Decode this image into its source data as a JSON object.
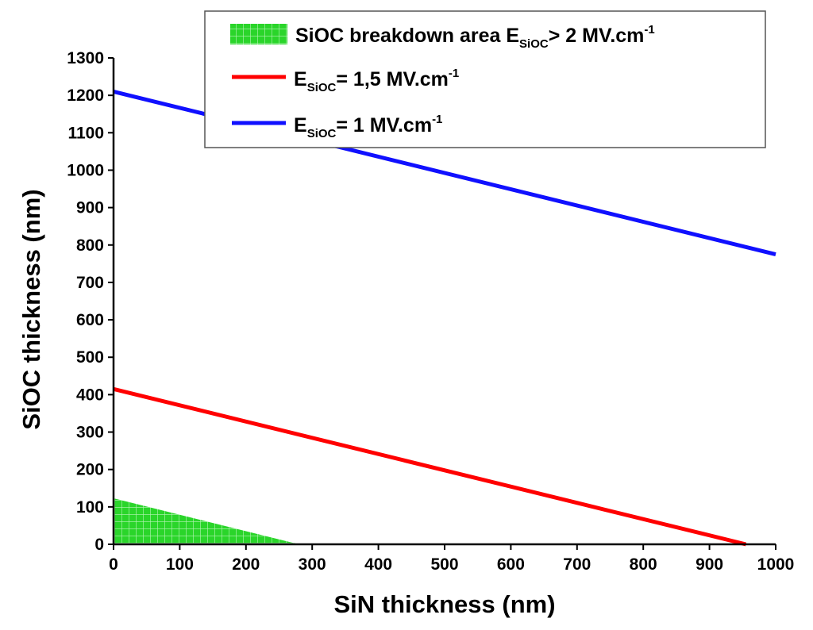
{
  "chart_data": {
    "type": "line",
    "xlabel": "SiN thickness (nm)",
    "ylabel": "SiOC thickness (nm)",
    "xlim": [
      0,
      1000
    ],
    "ylim": [
      0,
      1300
    ],
    "xticks": [
      0,
      100,
      200,
      300,
      400,
      500,
      600,
      700,
      800,
      900,
      1000
    ],
    "yticks": [
      0,
      100,
      200,
      300,
      400,
      500,
      600,
      700,
      800,
      900,
      1000,
      1100,
      1200,
      1300
    ],
    "x_tick_labels": [
      "0",
      "100",
      "200",
      "300",
      "400",
      "500",
      "600",
      "700",
      "800",
      "900",
      "1000"
    ],
    "y_tick_labels": [
      "0",
      "100",
      "200",
      "300",
      "400",
      "500",
      "600",
      "700",
      "800",
      "900",
      "1000",
      "1100",
      "1200",
      "1300"
    ],
    "grid": false,
    "legend_position": "top-right",
    "area": {
      "name": "SiOC breakdown area E_SiOC > 2 MV.cm-1",
      "color": "#22dd22",
      "x": [
        0,
        280,
        0
      ],
      "y": [
        123,
        0,
        0
      ]
    },
    "series": [
      {
        "name": "E_SiOC = 1,5 MV.cm-1",
        "color": "#ff0000",
        "x": [
          0,
          955
        ],
        "y": [
          415,
          0
        ]
      },
      {
        "name": "E_SiOC = 1 MV.cm-1",
        "color": "#1010ff",
        "x": [
          0,
          1000
        ],
        "y": [
          1210,
          775
        ]
      }
    ],
    "legend": [
      {
        "key": "area",
        "text": "SiOC breakdown area E",
        "sub": "SiOC",
        "after": "> 2 MV.cm",
        "sup": "-1"
      },
      {
        "key": "red",
        "text": "E",
        "sub": "SiOC",
        "after": "= 1,5 MV.cm",
        "sup": "-1"
      },
      {
        "key": "blue",
        "text": "E",
        "sub": "SiOC",
        "after": "= 1 MV.cm",
        "sup": "-1"
      }
    ]
  }
}
